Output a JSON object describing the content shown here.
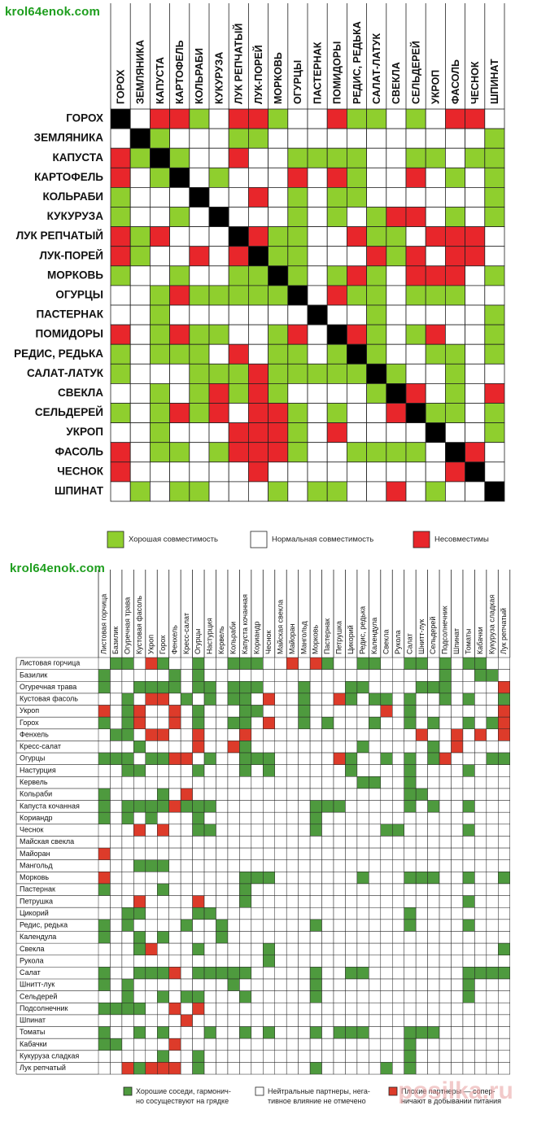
{
  "watermark_top": "krol64enok.com",
  "watermark_bottom": "krol64enok.com",
  "watermark_corner": "posilka.ru",
  "colors": {
    "good": "#8fcf2e",
    "neutral": "#ffffff",
    "bad": "#e8262b",
    "self": "#000000",
    "good2": "#4e9a3e",
    "bad2": "#dd3b2a"
  },
  "chart_data": [
    {
      "type": "heatmap",
      "title": "",
      "value_codes": {
        "G": "Хорошая совместимость",
        "N": "Нормальная совместимость",
        "B": "Несовместимы",
        "X": "self"
      },
      "categories": [
        "ГОРОХ",
        "ЗЕМЛЯНИКА",
        "КАПУСТА",
        "КАРТОФЕЛЬ",
        "КОЛЬРАБИ",
        "КУКУРУЗА",
        "ЛУК РЕПЧАТЫЙ",
        "ЛУК-ПОРЕЙ",
        "МОРКОВЬ",
        "ОГУРЦЫ",
        "ПАСТЕРНАК",
        "ПОМИДОРЫ",
        "РЕДИС, РЕДЬКА",
        "САЛАТ-ЛАТУК",
        "СВЕКЛА",
        "СЕЛЬДЕРЕЙ",
        "УКРОП",
        "ФАСОЛЬ",
        "ЧЕСНОК",
        "ШПИНАТ"
      ],
      "matrix": [
        "XNBBGNBBGNNBGGNGNBBN",
        "NXGNNNGGNNNNNNNNNNNG",
        "BGXGNNBNNGGGGNNGGNGG",
        "BNGXNGNNNBNBGNNBNGNG",
        "GNNNXNNBNGNGGNNNNNNG",
        "GNNGNXNNNGNGNGBBNGNG",
        "BGBNNNXBGGNNBGGNBBBN",
        "BGNNBNBXGGNNNBGBNBBN",
        "GNNGNNGGXGNGBGNBBBNG",
        "NNGBGGGGGXNBGGNGGGNN",
        "NNGNNNNNNNXNNGNNNNNG",
        "BNGBGGNNGBNXBGNGBNNG",
        "GNGGGNBNGGNGXGNNGGNG",
        "GNNNGGGBGGGGGXGNNGNN",
        "NNGNGBGBGNNNNGXBNGNB",
        "GNGBGBNBBGNGNNBXGGNG",
        "NNGNNNBBBGNBNNNNXNNG",
        "BNGGNGBBBGNNGGGGNXBN",
        "BNNNNNNBNNNNNNNNNBXN",
        "NGNGGNNNGNGGNNBNGNNX"
      ],
      "legend": [
        {
          "key": "G",
          "label": "Хорошая совместимость"
        },
        {
          "key": "N",
          "label": "Нормальная совместимость"
        },
        {
          "key": "B",
          "label": "Несовместимы"
        }
      ]
    },
    {
      "type": "heatmap",
      "title": "",
      "value_codes": {
        "G": "good",
        "N": "neutral",
        "B": "bad"
      },
      "categories": [
        "Листовая горчица",
        "Базилик",
        "Огуречная трава",
        "Кустовая фасоль",
        "Укроп",
        "Горох",
        "Фенхель",
        "Кресс-салат",
        "Огурцы",
        "Настурция",
        "Кервель",
        "Кольраби",
        "Капуста кочанная",
        "Кориандр",
        "Чеснок",
        "Майская свекла",
        "Майоран",
        "Мангольд",
        "Морковь",
        "Пастернак",
        "Петрушка",
        "Цикорий",
        "Редис, редька",
        "Календула",
        "Свекла",
        "Рукола",
        "Салат",
        "Шнитт-лук",
        "Сельдерей",
        "Подсолнечник",
        "Шпинат",
        "Томаты",
        "Кабачки",
        "Кукуруза сладкая",
        "Лук репчатый"
      ],
      "matrix": [
        "NGGNBGNNGNNGGGNNBNBGNNGGNNGGNGNGGNN",
        "GNNNNNGNGNNNNNNNNNNNNNNNNNNNNGNNGGN",
        "GNNGGGGNGGNGGGNNNGNNNGGNNNNGGGNNNNB",
        "NNGNBBNGNGNGGNBNNGNNBGNGGNGNNGNGNNG",
        "BNGBNNBNGNNNGGNNNGNNNNNNBNGNNNNNNNB",
        "GNGBNNBNGNNGGNBNNGNGNNNGNNGNGNNGNGB",
        "NGGNBBNNBNNNBNNNNNNNNNNNNNNBNNBNBNB",
        "NNNGNNNNBNNBGNNNNNNNNNGNNNNNGNBNNNN",
        "GGGNGGBBNGNNGGGNNNNNBGNNGNGNGBNNNGG",
        "NNGGNNNNGNNNGNGNNNNNNGNNNNGNNNNGNNN",
        "NNNNNNNNNNNNNNNNNNNNNNGGNNGNNNNNNNN",
        "GNNNNGNBNNNNNNNNNNNNNNNNNNGGNNNNNNN",
        "GNGGGGBGGGNNNNNNNNGGGNNNNNGNGNNGNNN",
        "GNGNGNNNGNNNNNNNNNGNNNNNNNNNNNNNNNN",
        "NNNBNBNNGGNNNNNNNNGNNNNNGGNNNNNGNNN",
        "NNNNNNNNNNNNNNNNNNNNNNNNNNNNNNNNNNN",
        "BNNNNNNNNNNNNNNNNNNNNNNNNNNNNNNNNNN",
        "NNNGGGNNNNNNNNNNNNNNNNNNNNNNNNNNNNN",
        "BNNNNNNNNNNNGGGNNNNNNNGNNNGGGNNGNNG",
        "GNNNNGNNNNNNGNNNNNNNNNNNNNNNNNNNNNN",
        "NNNBNNNNBNNNGNNNNNNNNNNNNNNNNNNGNNN",
        "NNGGNNNNGGNNNNNNNNNNNNNNNNGNNNNNNNN",
        "GNGNNNNGNNGNNNNNNNGNNNNNNNGNNNNGNNN",
        "GNNGNGNNNNGNNNNNNNNNNNNNNNNNNNNNNNN",
        "NNNGBNNNGNNNNNGNNNNNNNNNNNNNNNNNNNG",
        "NNNNNNNNNNNNNNGNNNNNNNNNNNNNNNNNNNN",
        "GNNGGGBNGGGGGNNNNNGNNGGNNNNNNNNGGGG",
        "GNGNNNNNNNNGNNNNNNGNNNNNNNNNNNNGNNN",
        "NNGNNGNGGNNNGNNNNNGNNNNNNNNNNNNGNNN",
        "GGGGNNBNBNNNNNNNNNNNNNNNNNNNNNNNNNN",
        "NNNNNNNBNNNNNNNNNNNNNNNNNNNNNNNNNNN",
        "GNNGNGNNNGNNGNGNNNGNGGGNNNGGGNNNNNN",
        "GGNNNNBNNNNNNNNNNNNNNNNNNNGNNNNNNNN",
        "NNNNNGNNGNNNNNNNNNNNNNNNNNGNNNNNNNN",
        "NNBGBBBNGNNNNNNNNNGNNNNNGNGNNNNNNNN"
      ],
      "legend": [
        {
          "key": "G",
          "label": "Хорошие соседи, гармонич-но сосуществуют на грядке"
        },
        {
          "key": "N",
          "label": "Нейтральные партнеры, нега-тивное влияние не отмечено"
        },
        {
          "key": "B",
          "label": "Плохие партнеры — сопер-ничают в добывании питания"
        }
      ]
    }
  ]
}
